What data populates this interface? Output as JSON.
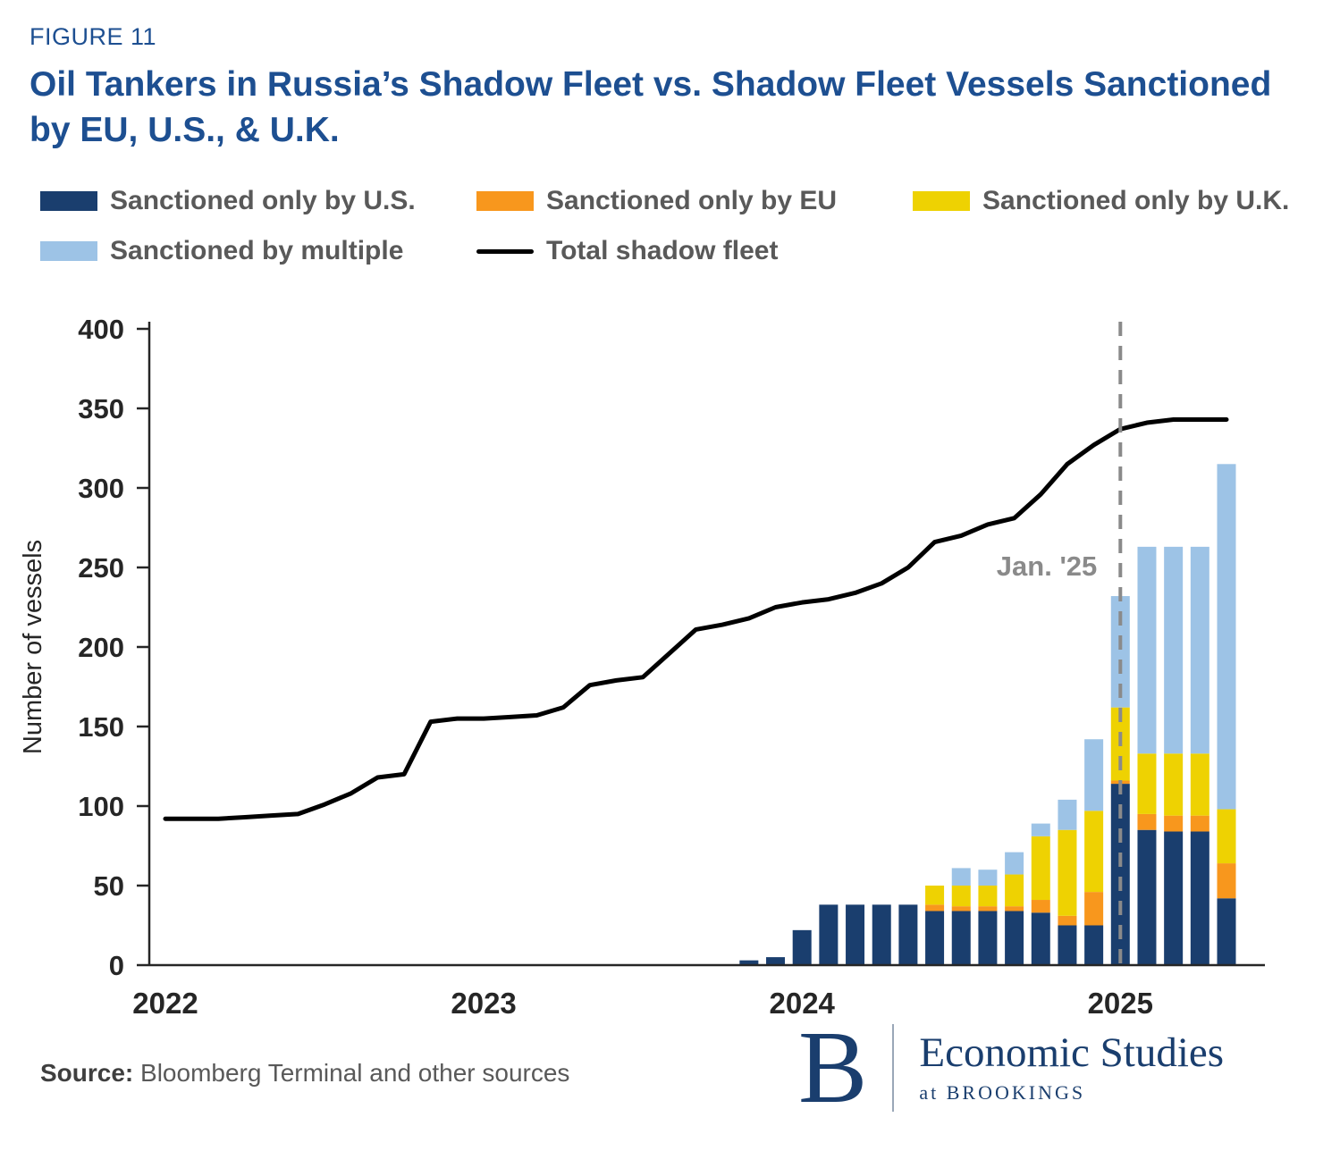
{
  "figure_label": "FIGURE 11",
  "title": "Oil Tankers in Russia’s Shadow Fleet vs. Shadow Fleet Vessels Sanctioned by EU, U.S., & U.K.",
  "source": {
    "label": "Source:",
    "text": " Bloomberg Terminal and other sources"
  },
  "logo": {
    "letter": "B",
    "line1": "Economic Studies",
    "line2": "at BROOKINGS"
  },
  "colors": {
    "title": "#1d4f91",
    "axis": "#262626",
    "legend_text": "#595959",
    "annotation": "#8a8a8a"
  },
  "chart_data": {
    "type": "combo-stacked-bar-line",
    "frequency": "monthly",
    "start": "2022-01",
    "end": "2025-05",
    "ylabel": "Number of vessels",
    "ylim": [
      0,
      400
    ],
    "ytick_step": 50,
    "x_axis_years": [
      {
        "label": "2022",
        "month_index": 0
      },
      {
        "label": "2023",
        "month_index": 12
      },
      {
        "label": "2024",
        "month_index": 24
      },
      {
        "label": "2025",
        "month_index": 36
      }
    ],
    "annotation": {
      "label": "Jan. '25",
      "month_index": 36
    },
    "line_series": {
      "name": "Total shadow fleet",
      "color": "#000000",
      "values": [
        92,
        92,
        92,
        93,
        94,
        95,
        101,
        108,
        118,
        120,
        153,
        155,
        155,
        156,
        157,
        162,
        176,
        179,
        181,
        196,
        211,
        214,
        218,
        225,
        228,
        230,
        234,
        240,
        250,
        266,
        270,
        277,
        281,
        296,
        315,
        327,
        337,
        341,
        343,
        343,
        343
      ]
    },
    "bar_series": [
      {
        "name": "Sanctioned only by U.S.",
        "color": "#1a3e6e",
        "values": [
          0,
          0,
          0,
          0,
          0,
          0,
          0,
          0,
          0,
          0,
          0,
          0,
          0,
          0,
          0,
          0,
          0,
          0,
          0,
          0,
          0,
          0,
          3,
          5,
          22,
          38,
          38,
          38,
          38,
          34,
          34,
          34,
          34,
          33,
          25,
          25,
          114,
          85,
          84,
          84,
          42
        ]
      },
      {
        "name": "Sanctioned only by EU",
        "color": "#f8971d",
        "values": [
          0,
          0,
          0,
          0,
          0,
          0,
          0,
          0,
          0,
          0,
          0,
          0,
          0,
          0,
          0,
          0,
          0,
          0,
          0,
          0,
          0,
          0,
          0,
          0,
          0,
          0,
          0,
          0,
          0,
          4,
          3,
          3,
          3,
          8,
          6,
          21,
          2,
          10,
          10,
          10,
          22
        ]
      },
      {
        "name": "Sanctioned only by U.K.",
        "color": "#eed202",
        "values": [
          0,
          0,
          0,
          0,
          0,
          0,
          0,
          0,
          0,
          0,
          0,
          0,
          0,
          0,
          0,
          0,
          0,
          0,
          0,
          0,
          0,
          0,
          0,
          0,
          0,
          0,
          0,
          0,
          0,
          12,
          13,
          13,
          20,
          40,
          54,
          51,
          46,
          38,
          39,
          39,
          34
        ]
      },
      {
        "name": "Sanctioned by multiple",
        "color": "#9dc3e6",
        "values": [
          0,
          0,
          0,
          0,
          0,
          0,
          0,
          0,
          0,
          0,
          0,
          0,
          0,
          0,
          0,
          0,
          0,
          0,
          0,
          0,
          0,
          0,
          0,
          0,
          0,
          0,
          0,
          0,
          0,
          0,
          11,
          10,
          14,
          8,
          19,
          45,
          70,
          130,
          130,
          130,
          217
        ]
      }
    ]
  }
}
